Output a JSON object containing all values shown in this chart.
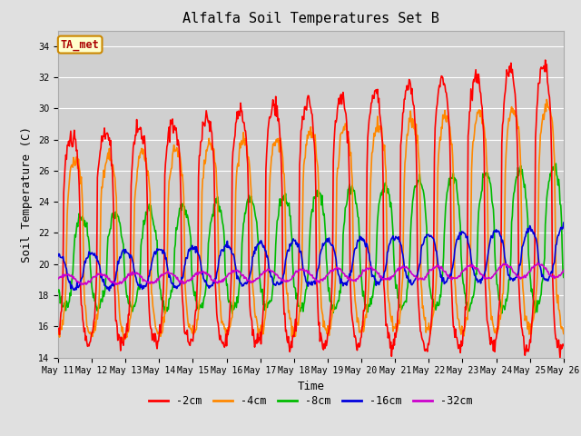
{
  "title": "Alfalfa Soil Temperatures Set B",
  "xlabel": "Time",
  "ylabel": "Soil Temperature (C)",
  "ylim": [
    14,
    35
  ],
  "yticks": [
    14,
    16,
    18,
    20,
    22,
    24,
    26,
    28,
    30,
    32,
    34
  ],
  "fig_bg_color": "#e0e0e0",
  "plot_bg_color": "#d0d0d0",
  "annotation_text": "TA_met",
  "annotation_box_color": "#ffffcc",
  "annotation_text_color": "#aa0000",
  "annotation_edge_color": "#cc8800",
  "series": {
    "-2cm": {
      "color": "#ff0000",
      "linewidth": 1.2
    },
    "-4cm": {
      "color": "#ff8800",
      "linewidth": 1.2
    },
    "-8cm": {
      "color": "#00bb00",
      "linewidth": 1.2
    },
    "-16cm": {
      "color": "#0000dd",
      "linewidth": 1.2
    },
    "-32cm": {
      "color": "#cc00cc",
      "linewidth": 1.2
    }
  },
  "legend_order": [
    "-2cm",
    "-4cm",
    "-8cm",
    "-16cm",
    "-32cm"
  ],
  "start_day": 11,
  "end_day": 26,
  "points_per_day": 48,
  "tick_fontsize": 7.0,
  "label_fontsize": 9,
  "title_fontsize": 11
}
